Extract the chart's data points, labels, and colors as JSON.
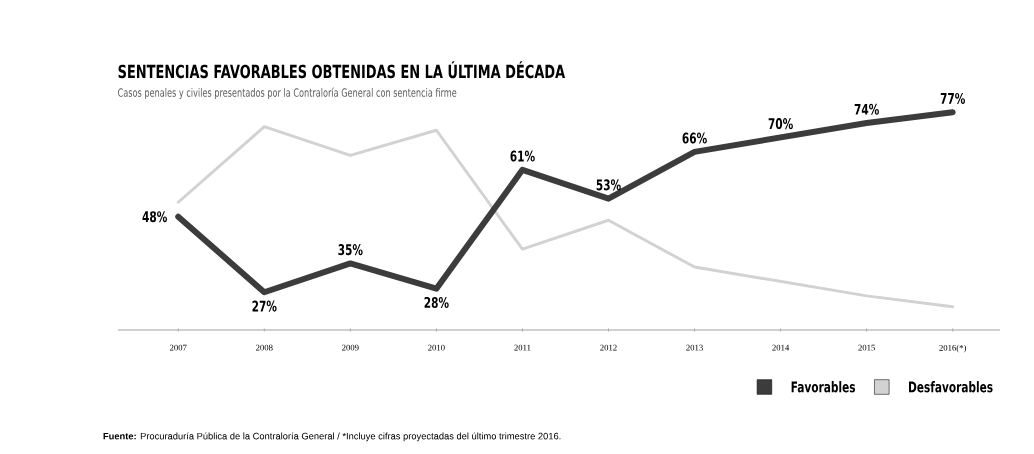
{
  "chart_data": {
    "type": "line",
    "title": "SENTENCIAS FAVORABLES OBTENIDAS EN LA ÚLTIMA DÉCADA",
    "subtitle": "Casos penales y civiles presentados por la Contraloría General con sentencia firme",
    "categories": [
      "2007",
      "2008",
      "2009",
      "2010",
      "2011",
      "2012",
      "2013",
      "2014",
      "2015",
      "2016(*)"
    ],
    "series": [
      {
        "name": "Favorables",
        "color": "#3c3c3c",
        "values": [
          48,
          27,
          35,
          28,
          61,
          53,
          66,
          70,
          74,
          77
        ],
        "value_labels": [
          "48%",
          "27%",
          "35%",
          "28%",
          "61%",
          "53%",
          "66%",
          "70%",
          "74%",
          "77%"
        ]
      },
      {
        "name": "Desfavorables",
        "color": "#d2d2d2",
        "values": [
          52,
          73,
          65,
          72,
          39,
          47,
          34,
          30,
          26,
          23
        ]
      }
    ],
    "legend": "bottom right",
    "grid": false,
    "marker": "none",
    "line_style": "solid",
    "annotations": [
      "**Fuente:** Procuraduría Pública de la Contraloría General / *Incluye cifras proyectadas del último trimestre 2016."
    ]
  }
}
